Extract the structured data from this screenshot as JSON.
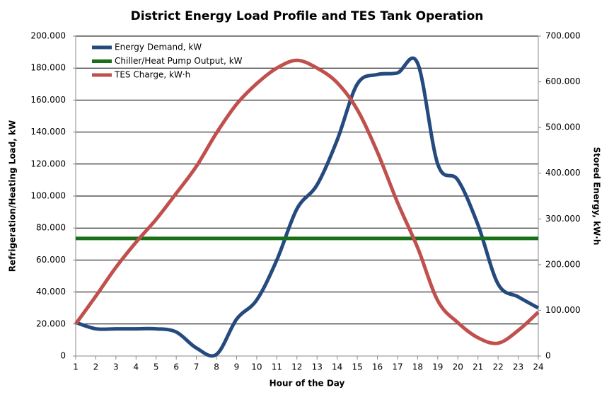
{
  "chart_data": {
    "type": "line",
    "title": "District Energy Load Profile and TES Tank Operation",
    "xlabel": "Hour of the Day",
    "ylabel": "Refrigeration/Heating  Load, kW",
    "y2label": "Stored Energy, kW·h",
    "x": [
      1,
      2,
      3,
      4,
      5,
      6,
      7,
      8,
      9,
      10,
      11,
      12,
      13,
      14,
      15,
      16,
      17,
      18,
      19,
      20,
      21,
      22,
      23,
      24
    ],
    "xlim": [
      1,
      24
    ],
    "xticks": [
      1,
      2,
      3,
      4,
      5,
      6,
      7,
      8,
      9,
      10,
      11,
      12,
      13,
      14,
      15,
      16,
      17,
      18,
      19,
      20,
      21,
      22,
      23,
      24
    ],
    "ylim": [
      0,
      200000
    ],
    "yticks": [
      0,
      {
        "value": 20000,
        "label": "20.000"
      },
      {
        "value": 40000,
        "label": "40.000"
      },
      {
        "value": 60000,
        "label": "60.000"
      },
      {
        "value": 80000,
        "label": "80.000"
      },
      {
        "value": 100000,
        "label": "100.000"
      },
      {
        "value": 120000,
        "label": "120.000"
      },
      {
        "value": 140000,
        "label": "140.000"
      },
      {
        "value": 160000,
        "label": "160.000"
      },
      {
        "value": 180000,
        "label": "180.000"
      },
      {
        "value": 200000,
        "label": "200.000"
      }
    ],
    "y2lim": [
      0,
      700000
    ],
    "y2ticks": [
      0,
      {
        "value": 100000,
        "label": "100.000"
      },
      {
        "value": 200000,
        "label": "200.000"
      },
      {
        "value": 300000,
        "label": "300.000"
      },
      {
        "value": 400000,
        "label": "400.000"
      },
      {
        "value": 500000,
        "label": "500.000"
      },
      {
        "value": 600000,
        "label": "600.000"
      },
      {
        "value": 700000,
        "label": "700.000"
      }
    ],
    "grid": true,
    "legend": "upper left",
    "series": [
      {
        "name": "Energy Demand, kW",
        "color": "#254a7e",
        "values": [
          21000,
          17000,
          17000,
          17000,
          17000,
          15000,
          5000,
          1000,
          23000,
          35000,
          60000,
          92000,
          107000,
          135000,
          170000,
          176000,
          177000,
          183000,
          120000,
          110000,
          82000,
          45000,
          37000,
          30000
        ]
      },
      {
        "name": "Chiller/Heat Pump Output, kW",
        "color": "#187018",
        "values": [
          73500,
          73500,
          73500,
          73500,
          73500,
          73500,
          73500,
          73500,
          73500,
          73500,
          73500,
          73500,
          73500,
          73500,
          73500,
          73500,
          73500,
          73500,
          73500,
          73500,
          73500,
          73500,
          73500,
          73500
        ]
      },
      {
        "name": "TES Charge, kW·h",
        "color": "#c0504d",
        "axis": "y2",
        "values": [
          70000,
          131000,
          194000,
          249000,
          299000,
          356000,
          415000,
          488000,
          551000,
          596000,
          630000,
          647000,
          630000,
          598000,
          539000,
          446000,
          336000,
          237000,
          121000,
          73000,
          40000,
          28000,
          56000,
          96000
        ]
      }
    ]
  }
}
